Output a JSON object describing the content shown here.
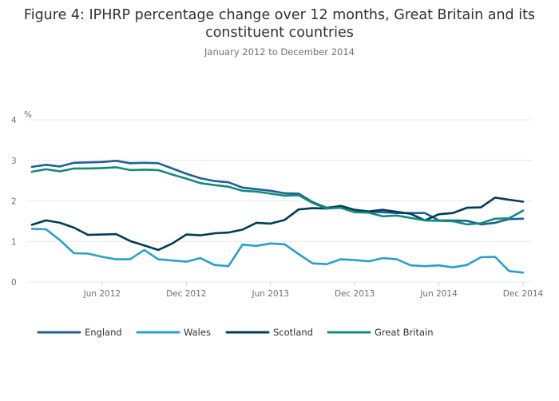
{
  "chart_data": {
    "type": "line",
    "title": "Figure 4: IPHRP percentage change over 12 months, Great Britain and its constituent countries",
    "subtitle": "January 2012 to December 2014",
    "ylabel": "%",
    "xlabel": "",
    "ylim": [
      0,
      4
    ],
    "yticks": [
      0,
      1,
      2,
      3,
      4
    ],
    "x_ticks": [
      {
        "label": "Jun 2012",
        "index": 5
      },
      {
        "label": "Dec 2012",
        "index": 11
      },
      {
        "label": "Jun 2013",
        "index": 17
      },
      {
        "label": "Dec 2013",
        "index": 23
      },
      {
        "label": "Jun 2014",
        "index": 29
      },
      {
        "label": "Dec 2014",
        "index": 35
      }
    ],
    "x": [
      "Jan 2012",
      "Feb 2012",
      "Mar 2012",
      "Apr 2012",
      "May 2012",
      "Jun 2012",
      "Jul 2012",
      "Aug 2012",
      "Sep 2012",
      "Oct 2012",
      "Nov 2012",
      "Dec 2012",
      "Jan 2013",
      "Feb 2013",
      "Mar 2013",
      "Apr 2013",
      "May 2013",
      "Jun 2013",
      "Jul 2013",
      "Aug 2013",
      "Sep 2013",
      "Oct 2013",
      "Nov 2013",
      "Dec 2013",
      "Jan 2014",
      "Feb 2014",
      "Mar 2014",
      "Apr 2014",
      "May 2014",
      "Jun 2014",
      "Jul 2014",
      "Aug 2014",
      "Sep 2014",
      "Oct 2014",
      "Nov 2014",
      "Dec 2014"
    ],
    "grid": true,
    "legend_position": "bottom",
    "series": [
      {
        "name": "England",
        "color": "#206095",
        "values": [
          2.84,
          2.89,
          2.85,
          2.94,
          2.95,
          2.96,
          2.99,
          2.93,
          2.94,
          2.93,
          2.8,
          2.67,
          2.56,
          2.49,
          2.46,
          2.33,
          2.29,
          2.25,
          2.19,
          2.18,
          1.97,
          1.83,
          1.87,
          1.78,
          1.73,
          1.72,
          1.7,
          1.7,
          1.7,
          1.52,
          1.52,
          1.51,
          1.42,
          1.46,
          1.55,
          1.56
        ]
      },
      {
        "name": "Wales",
        "color": "#27a0cc",
        "values": [
          1.31,
          1.3,
          1.03,
          0.71,
          0.7,
          0.62,
          0.56,
          0.56,
          0.79,
          0.56,
          0.53,
          0.5,
          0.59,
          0.42,
          0.39,
          0.92,
          0.89,
          0.95,
          0.93,
          0.69,
          0.46,
          0.44,
          0.56,
          0.54,
          0.51,
          0.59,
          0.56,
          0.41,
          0.39,
          0.41,
          0.36,
          0.42,
          0.61,
          0.62,
          0.27,
          0.23
        ]
      },
      {
        "name": "Scotland",
        "color": "#003c57",
        "values": [
          1.41,
          1.52,
          1.46,
          1.34,
          1.16,
          1.17,
          1.18,
          1.01,
          0.9,
          0.79,
          0.95,
          1.17,
          1.15,
          1.2,
          1.22,
          1.29,
          1.46,
          1.44,
          1.53,
          1.79,
          1.82,
          1.81,
          1.88,
          1.78,
          1.74,
          1.78,
          1.73,
          1.68,
          1.52,
          1.67,
          1.7,
          1.83,
          1.84,
          2.08,
          2.03,
          1.98
        ]
      },
      {
        "name": "Great Britain",
        "color": "#118c7b",
        "values": [
          2.72,
          2.78,
          2.73,
          2.8,
          2.8,
          2.81,
          2.83,
          2.76,
          2.77,
          2.76,
          2.65,
          2.55,
          2.44,
          2.39,
          2.35,
          2.25,
          2.23,
          2.18,
          2.13,
          2.14,
          1.95,
          1.81,
          1.83,
          1.72,
          1.71,
          1.62,
          1.64,
          1.58,
          1.52,
          1.51,
          1.5,
          1.42,
          1.45,
          1.56,
          1.57,
          1.76
        ]
      }
    ]
  }
}
